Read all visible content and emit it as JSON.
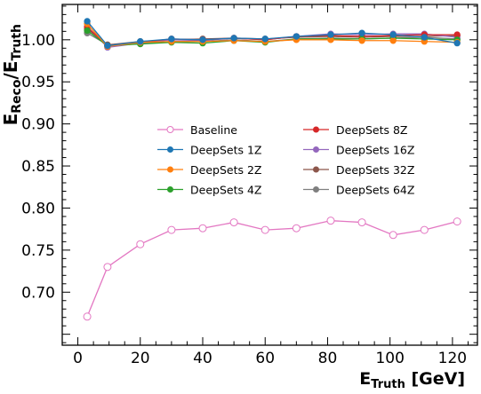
{
  "chart_data": {
    "type": "line",
    "xlabel": {
      "main": "E",
      "sub": "Truth",
      "unit": " [GeV]"
    },
    "ylabel": {
      "main1": "E",
      "sub1": "Reco",
      "slash": "/E",
      "sub2": "Truth"
    },
    "xlim": [
      -5,
      128
    ],
    "ylim": [
      0.637,
      1.042
    ],
    "xticks": [
      0,
      20,
      40,
      60,
      80,
      100,
      120
    ],
    "yticks": [
      0.7,
      0.75,
      0.8,
      0.85,
      0.9,
      0.95,
      1.0
    ],
    "ytick_labels": [
      "0.70",
      "0.75",
      "0.80",
      "0.85",
      "0.90",
      "0.95",
      "1.00"
    ],
    "x": [
      3,
      9.5,
      20,
      30,
      40,
      50,
      60,
      70,
      81,
      91,
      101,
      111,
      121.5
    ],
    "grid": false,
    "legend_placement": "center",
    "series": [
      {
        "name": "Baseline",
        "color": "#e377c2",
        "marker": "open-circle",
        "values": [
          0.671,
          0.73,
          0.757,
          0.774,
          0.776,
          0.783,
          0.774,
          0.776,
          0.785,
          0.783,
          0.768,
          0.774,
          0.784
        ]
      },
      {
        "name": "DeepSets 1Z",
        "color": "#1f77b4",
        "marker": "filled-circle",
        "values": [
          1.022,
          0.993,
          0.998,
          1.001,
          1.0,
          1.002,
          1.001,
          1.004,
          1.006,
          1.008,
          1.006,
          1.003,
          0.996
        ]
      },
      {
        "name": "DeepSets 2Z",
        "color": "#ff7f0e",
        "marker": "filled-circle",
        "values": [
          1.019,
          0.992,
          0.997,
          0.998,
          0.998,
          0.999,
          0.998,
          1.0,
          1.0,
          0.999,
          0.999,
          0.998,
          0.997
        ]
      },
      {
        "name": "DeepSets 4Z",
        "color": "#2ca02c",
        "marker": "filled-circle",
        "values": [
          1.011,
          0.993,
          0.995,
          0.997,
          0.996,
          0.999,
          0.997,
          1.001,
          1.001,
          1.001,
          1.002,
          1.001,
          1.0
        ]
      },
      {
        "name": "DeepSets 8Z",
        "color": "#d62728",
        "marker": "filled-circle",
        "values": [
          1.015,
          0.993,
          0.997,
          1.001,
          1.0,
          1.002,
          1.0,
          1.004,
          1.005,
          1.004,
          1.005,
          1.006,
          1.006
        ]
      },
      {
        "name": "DeepSets 16Z",
        "color": "#9467bd",
        "marker": "filled-circle",
        "values": [
          1.016,
          0.991,
          0.996,
          1.0,
          0.999,
          1.002,
          1.0,
          1.004,
          1.007,
          1.006,
          1.007,
          1.007,
          1.003
        ]
      },
      {
        "name": "DeepSets 32Z",
        "color": "#8c564b",
        "marker": "filled-circle",
        "values": [
          1.013,
          0.994,
          0.998,
          1.0,
          1.001,
          1.002,
          1.001,
          1.003,
          1.004,
          1.003,
          1.004,
          1.004,
          1.005
        ]
      },
      {
        "name": "DeepSets 64Z",
        "color": "#7f7f7f",
        "marker": "filled-circle",
        "values": [
          1.008,
          0.994,
          0.996,
          0.998,
          0.998,
          1.0,
          0.998,
          1.001,
          1.002,
          1.001,
          1.002,
          1.003,
          1.001
        ]
      }
    ],
    "legend_columns": [
      [
        "Baseline",
        "DeepSets 1Z",
        "DeepSets 2Z",
        "DeepSets 4Z"
      ],
      [
        "DeepSets 8Z",
        "DeepSets 16Z",
        "DeepSets 32Z",
        "DeepSets 64Z"
      ]
    ]
  }
}
